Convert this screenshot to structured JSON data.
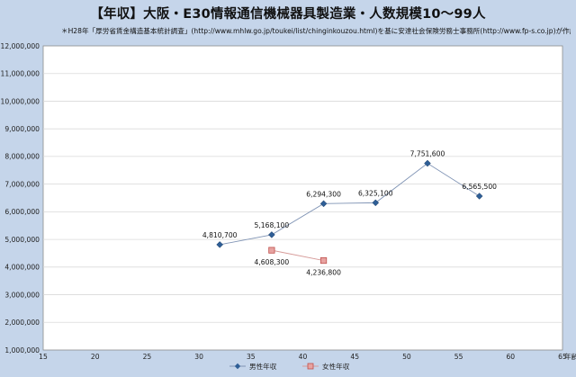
{
  "chart_data": {
    "type": "line",
    "title": "【年収】大阪・E30情報通信機械器具製造業・人数規模10～99人",
    "subtitle": "＊H28年「厚労省賃金構造基本統計調査」(http://www.mhlw.go.jp/toukei/list/chinginkouzou.html)を基に安達社会保険労務士事務所(http://www.fp-s.co.jp)が作成",
    "xlabel": "年齢",
    "ylabel": "",
    "xlim": [
      15,
      65
    ],
    "ylim": [
      1000000,
      12000000
    ],
    "x_ticks": [
      "15",
      "20",
      "25",
      "30",
      "35",
      "40",
      "45",
      "50",
      "55",
      "60",
      "65"
    ],
    "y_ticks": [
      "1,000,000",
      "2,000,000",
      "3,000,000",
      "4,000,000",
      "5,000,000",
      "6,000,000",
      "7,000,000",
      "8,000,000",
      "9,000,000",
      "10,000,000",
      "11,000,000",
      "12,000,000"
    ],
    "grid": "horizontal",
    "legend_position": "bottom",
    "series": [
      {
        "name": "男性年収",
        "color": "#2e5e96",
        "marker": "diamond",
        "points": [
          {
            "x": 32,
            "y": 4810700,
            "label": "4,810,700"
          },
          {
            "x": 37,
            "y": 5168100,
            "label": "5,168,100"
          },
          {
            "x": 42,
            "y": 6294300,
            "label": "6,294,300"
          },
          {
            "x": 47,
            "y": 6325100,
            "label": "6,325,100"
          },
          {
            "x": 52,
            "y": 7751600,
            "label": "7,751,600"
          },
          {
            "x": 57,
            "y": 6565500,
            "label": "6,565,500"
          }
        ]
      },
      {
        "name": "女性年収",
        "color": "#c0504d",
        "marker": "square",
        "points": [
          {
            "x": 37,
            "y": 4608300,
            "label": "4,608,300"
          },
          {
            "x": 42,
            "y": 4236800,
            "label": "4,236,800"
          }
        ]
      }
    ]
  }
}
